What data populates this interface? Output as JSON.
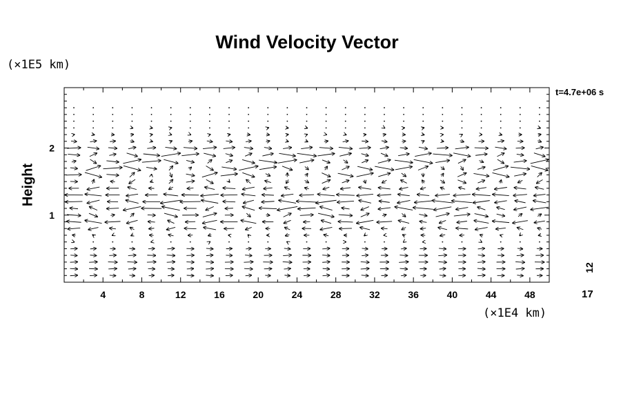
{
  "chart_data": {
    "type": "vector_field",
    "title": "Wind Velocity Vector",
    "y_unit_label": "(×1E5 km)",
    "x_unit_label": "(×1E4 km)",
    "ylabel": "Height",
    "time_label": "t=4.7e+06 s",
    "side_labels": [
      "12",
      "17"
    ],
    "x_ticks": [
      4,
      8,
      12,
      16,
      20,
      24,
      28,
      32,
      36,
      40,
      44,
      48
    ],
    "y_ticks": [
      1,
      2
    ],
    "xlim": [
      0,
      50
    ],
    "ylim": [
      0,
      2.9
    ],
    "grid": {
      "x_step": 2,
      "y_step": 0.1
    },
    "vector_rows": [
      {
        "y": 2.6,
        "u": 0.0,
        "amp": 0.0
      },
      {
        "y": 2.5,
        "u": 0.0,
        "amp": 0.0
      },
      {
        "y": 2.4,
        "u": 0.0,
        "amp": 0.0
      },
      {
        "y": 2.3,
        "u": 0.1,
        "amp": 0.1
      },
      {
        "y": 2.2,
        "u": 0.2,
        "amp": 0.1
      },
      {
        "y": 2.1,
        "u": 0.4,
        "amp": 0.2
      },
      {
        "y": 2.0,
        "u": 1.0,
        "amp": 0.3
      },
      {
        "y": 1.9,
        "u": 1.2,
        "amp": 0.6
      },
      {
        "y": 1.8,
        "u": 1.1,
        "amp": 0.7
      },
      {
        "y": 1.7,
        "u": 1.0,
        "amp": 0.8
      },
      {
        "y": 1.6,
        "u": 0.8,
        "amp": 0.8
      },
      {
        "y": 1.5,
        "u": 0.1,
        "amp": 0.7
      },
      {
        "y": 1.4,
        "u": -0.8,
        "amp": 0.4
      },
      {
        "y": 1.3,
        "u": -1.4,
        "amp": 0.3
      },
      {
        "y": 1.2,
        "u": -1.5,
        "amp": 0.5
      },
      {
        "y": 1.1,
        "u": -1.3,
        "amp": 0.6
      },
      {
        "y": 1.0,
        "u": 0.9,
        "amp": 0.6
      },
      {
        "y": 0.9,
        "u": -1.1,
        "amp": 0.5
      },
      {
        "y": 0.8,
        "u": -0.8,
        "amp": 0.4
      },
      {
        "y": 0.7,
        "u": -0.3,
        "amp": 0.2
      },
      {
        "y": 0.6,
        "u": 0.0,
        "amp": 0.1
      },
      {
        "y": 0.5,
        "u": 0.6,
        "amp": 0.1
      },
      {
        "y": 0.4,
        "u": 0.7,
        "amp": 0.1
      },
      {
        "y": 0.3,
        "u": 0.8,
        "amp": 0.1
      },
      {
        "y": 0.2,
        "u": 0.7,
        "amp": 0.1
      },
      {
        "y": 0.1,
        "u": 0.6,
        "amp": 0.1
      }
    ]
  }
}
